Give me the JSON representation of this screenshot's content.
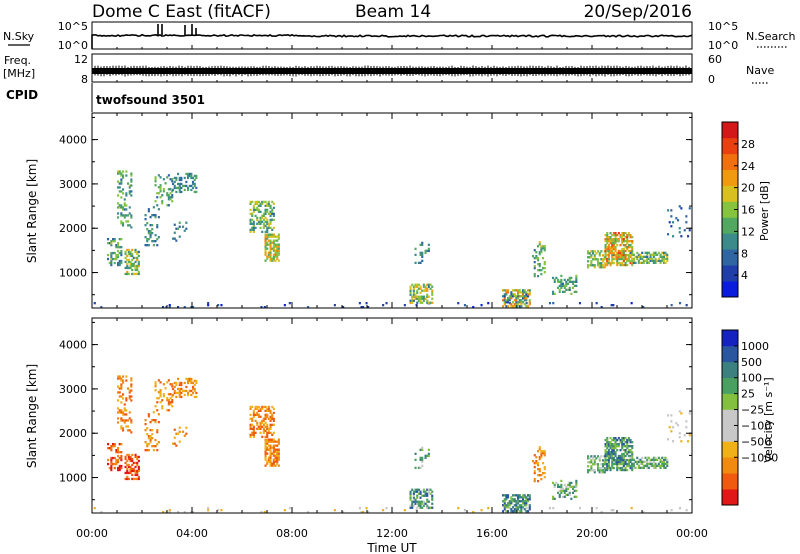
{
  "header": {
    "station": "Dome C East (fitACF)",
    "beam": "Beam 14",
    "date": "20/Sep/2016"
  },
  "strip": {
    "nsky_label": "N.Sky",
    "nsky_ticks": [
      "10^5",
      "10^0"
    ],
    "nsearch_ticks": [
      "10^5",
      "10^0"
    ],
    "nsearch_label": "N.Search",
    "freq_label": "Freq.",
    "freq_unit": "[MHz]",
    "freq_ticks": [
      "12",
      "8"
    ],
    "nave_ticks": [
      "60",
      "0"
    ],
    "nave_label": "Nave",
    "cpid_label": "CPID",
    "cpid_value": "twofsound 3501"
  },
  "colors": {
    "power": [
      "#0a1cdc",
      "#1f3ea8",
      "#2f66a2",
      "#3c8a8a",
      "#52a860",
      "#86c440",
      "#d8c020",
      "#f09a10",
      "#f07010",
      "#e84010",
      "#d21818"
    ],
    "velocity": [
      "#e01818",
      "#f05a10",
      "#f08a10",
      "#f0b018",
      "#c8c8c8",
      "#c8c8c8",
      "#84c040",
      "#4aa060",
      "#3c8080",
      "#2a56a0",
      "#1422c0"
    ]
  },
  "chart_data": [
    {
      "type": "heatmap",
      "name": "power",
      "xlabel": "",
      "ylabel": "Slant Range [km]",
      "xlim": [
        0,
        24
      ],
      "ylim": [
        200,
        4600
      ],
      "yticks": [
        "4000",
        "3000",
        "2000",
        "1000"
      ],
      "colorbar_label": "Power [dB]",
      "colorbar_ticks": [
        "28",
        "24",
        "20",
        "16",
        "12",
        "8",
        "4"
      ],
      "colorbar_range": [
        0,
        32
      ],
      "regions": [
        {
          "t": [
            0.0,
            24.0
          ],
          "r": [
            200,
            330
          ],
          "lo": 2,
          "hi": 8,
          "d": 0.035
        },
        {
          "t": [
            0.6,
            1.2
          ],
          "r": [
            1150,
            1750
          ],
          "lo": 6,
          "hi": 18,
          "d": 0.5
        },
        {
          "t": [
            1.0,
            1.6
          ],
          "r": [
            2000,
            3300
          ],
          "lo": 8,
          "hi": 18,
          "d": 0.25
        },
        {
          "t": [
            1.3,
            1.9
          ],
          "r": [
            950,
            1500
          ],
          "lo": 8,
          "hi": 22,
          "d": 0.55
        },
        {
          "t": [
            2.1,
            2.7
          ],
          "r": [
            1600,
            2500
          ],
          "lo": 6,
          "hi": 14,
          "d": 0.18
        },
        {
          "t": [
            2.5,
            3.2
          ],
          "r": [
            2500,
            3200
          ],
          "lo": 8,
          "hi": 16,
          "d": 0.22
        },
        {
          "t": [
            3.2,
            4.2
          ],
          "r": [
            2800,
            3250
          ],
          "lo": 6,
          "hi": 14,
          "d": 0.45
        },
        {
          "t": [
            3.2,
            3.8
          ],
          "r": [
            1700,
            2200
          ],
          "lo": 6,
          "hi": 12,
          "d": 0.12
        },
        {
          "t": [
            6.3,
            7.3
          ],
          "r": [
            1900,
            2600
          ],
          "lo": 8,
          "hi": 20,
          "d": 0.45
        },
        {
          "t": [
            6.9,
            7.5
          ],
          "r": [
            1250,
            1850
          ],
          "lo": 12,
          "hi": 24,
          "d": 0.6
        },
        {
          "t": [
            12.9,
            13.5
          ],
          "r": [
            1200,
            1700
          ],
          "lo": 6,
          "hi": 14,
          "d": 0.2
        },
        {
          "t": [
            12.7,
            13.6
          ],
          "r": [
            300,
            750
          ],
          "lo": 8,
          "hi": 22,
          "d": 0.55
        },
        {
          "t": [
            16.4,
            17.5
          ],
          "r": [
            220,
            600
          ],
          "lo": 4,
          "hi": 26,
          "d": 0.7
        },
        {
          "t": [
            17.6,
            18.1
          ],
          "r": [
            900,
            1700
          ],
          "lo": 8,
          "hi": 18,
          "d": 0.35
        },
        {
          "t": [
            18.4,
            19.4
          ],
          "r": [
            500,
            950
          ],
          "lo": 8,
          "hi": 16,
          "d": 0.35
        },
        {
          "t": [
            19.8,
            20.5
          ],
          "r": [
            1100,
            1500
          ],
          "lo": 10,
          "hi": 22,
          "d": 0.55
        },
        {
          "t": [
            20.5,
            21.6
          ],
          "r": [
            1150,
            1900
          ],
          "lo": 12,
          "hi": 28,
          "d": 0.65
        },
        {
          "t": [
            21.5,
            23.0
          ],
          "r": [
            1200,
            1450
          ],
          "lo": 8,
          "hi": 20,
          "d": 0.6
        },
        {
          "t": [
            23.0,
            23.9
          ],
          "r": [
            1800,
            2500
          ],
          "lo": 4,
          "hi": 10,
          "d": 0.12
        }
      ]
    },
    {
      "type": "heatmap",
      "name": "velocity",
      "xlabel": "Time UT",
      "ylabel": "Slant Range [km]",
      "xlim": [
        0,
        24
      ],
      "ylim": [
        200,
        4600
      ],
      "xticks": [
        "00:00",
        "04:00",
        "08:00",
        "12:00",
        "16:00",
        "20:00",
        "00:00"
      ],
      "yticks": [
        "4000",
        "3000",
        "2000",
        "1000"
      ],
      "colorbar_label": "Velocity [m s⁻¹]",
      "colorbar_ticks": [
        "1000",
        "500",
        "100",
        "25",
        "−25",
        "−100",
        "−500",
        "−1000"
      ],
      "regions": [
        {
          "t": [
            0.0,
            24.0
          ],
          "r": [
            200,
            330
          ],
          "lo": 3,
          "hi": 5,
          "d": 0.035
        },
        {
          "t": [
            0.6,
            1.2
          ],
          "r": [
            1150,
            1750
          ],
          "lo": 0,
          "hi": 2,
          "d": 0.5
        },
        {
          "t": [
            1.0,
            1.6
          ],
          "r": [
            2000,
            3300
          ],
          "lo": 1,
          "hi": 3,
          "d": 0.25
        },
        {
          "t": [
            1.3,
            1.9
          ],
          "r": [
            950,
            1500
          ],
          "lo": 0,
          "hi": 2,
          "d": 0.55
        },
        {
          "t": [
            2.1,
            2.7
          ],
          "r": [
            1600,
            2500
          ],
          "lo": 1,
          "hi": 3,
          "d": 0.18
        },
        {
          "t": [
            2.5,
            3.2
          ],
          "r": [
            2500,
            3200
          ],
          "lo": 1,
          "hi": 3,
          "d": 0.22
        },
        {
          "t": [
            3.2,
            4.2
          ],
          "r": [
            2800,
            3250
          ],
          "lo": 1,
          "hi": 3,
          "d": 0.45
        },
        {
          "t": [
            3.2,
            3.8
          ],
          "r": [
            1700,
            2200
          ],
          "lo": 1,
          "hi": 3,
          "d": 0.12
        },
        {
          "t": [
            6.3,
            7.3
          ],
          "r": [
            1900,
            2600
          ],
          "lo": 1,
          "hi": 3,
          "d": 0.45
        },
        {
          "t": [
            6.9,
            7.5
          ],
          "r": [
            1250,
            1850
          ],
          "lo": 1,
          "hi": 3,
          "d": 0.6
        },
        {
          "t": [
            12.9,
            13.5
          ],
          "r": [
            1200,
            1700
          ],
          "lo": 5,
          "hi": 8,
          "d": 0.2
        },
        {
          "t": [
            12.7,
            13.6
          ],
          "r": [
            300,
            750
          ],
          "lo": 5,
          "hi": 9,
          "d": 0.55
        },
        {
          "t": [
            16.4,
            17.5
          ],
          "r": [
            220,
            600
          ],
          "lo": 6,
          "hi": 9,
          "d": 0.7
        },
        {
          "t": [
            17.6,
            18.1
          ],
          "r": [
            900,
            1700
          ],
          "lo": 1,
          "hi": 3,
          "d": 0.35
        },
        {
          "t": [
            18.4,
            19.4
          ],
          "r": [
            500,
            950
          ],
          "lo": 5,
          "hi": 8,
          "d": 0.35
        },
        {
          "t": [
            19.8,
            20.5
          ],
          "r": [
            1100,
            1500
          ],
          "lo": 5,
          "hi": 8,
          "d": 0.55
        },
        {
          "t": [
            20.5,
            21.6
          ],
          "r": [
            1150,
            1900
          ],
          "lo": 6,
          "hi": 9,
          "d": 0.65
        },
        {
          "t": [
            21.5,
            23.0
          ],
          "r": [
            1200,
            1450
          ],
          "lo": 5,
          "hi": 8,
          "d": 0.6
        },
        {
          "t": [
            23.0,
            23.9
          ],
          "r": [
            1800,
            2500
          ],
          "lo": 3,
          "hi": 5,
          "d": 0.12
        }
      ]
    }
  ]
}
